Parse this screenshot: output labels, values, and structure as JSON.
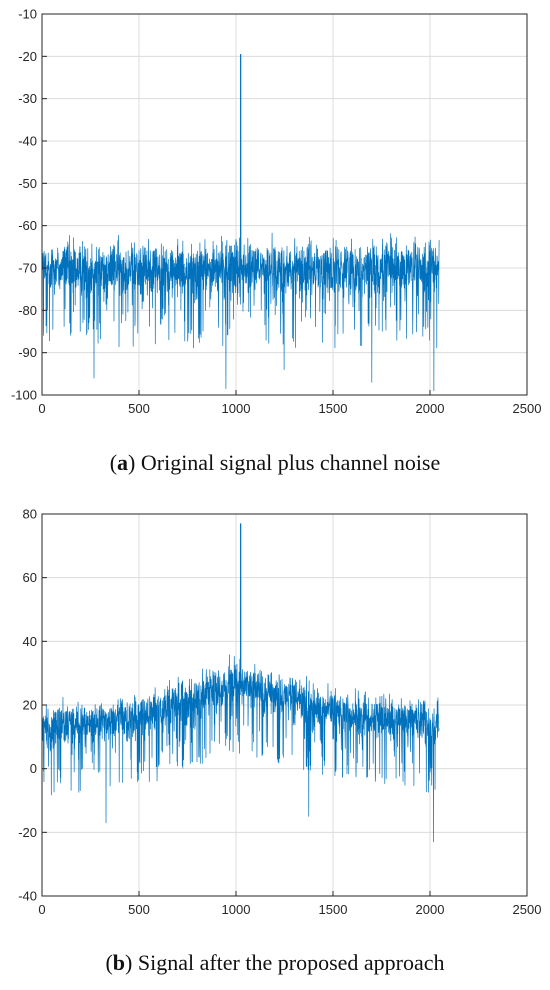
{
  "captions": {
    "a": {
      "letter": "a",
      "text": ") Original signal plus channel noise"
    },
    "b": {
      "letter": "b",
      "text": ") Signal after the proposed approach"
    }
  },
  "chart_data": [
    {
      "id": "a",
      "type": "line",
      "xlim": [
        0,
        2500
      ],
      "ylim": [
        -100,
        -10
      ],
      "xticks": [
        0,
        500,
        1000,
        1500,
        2000,
        2500
      ],
      "yticks": [
        -100,
        -90,
        -80,
        -70,
        -60,
        -50,
        -40,
        -30,
        -20,
        -10
      ],
      "grid": true,
      "color": "#0072BD",
      "n_points": 2048,
      "noise_floor": {
        "mean": -70,
        "upper": -60,
        "lower": -90
      },
      "peaks": [
        {
          "x": 1024,
          "y": -19.5
        }
      ],
      "dips": [
        {
          "x": 268,
          "y": -96
        },
        {
          "x": 948,
          "y": -98.5
        },
        {
          "x": 1248,
          "y": -94
        },
        {
          "x": 1700,
          "y": -97
        },
        {
          "x": 2020,
          "y": -99
        }
      ]
    },
    {
      "id": "b",
      "type": "line",
      "xlim": [
        0,
        2500
      ],
      "ylim": [
        -40,
        80
      ],
      "xticks": [
        0,
        500,
        1000,
        1500,
        2000,
        2500
      ],
      "yticks": [
        -40,
        -20,
        0,
        20,
        40,
        60,
        80
      ],
      "grid": true,
      "color": "#0072BD",
      "n_points": 2048,
      "envelope": [
        [
          0,
          13
        ],
        [
          500,
          16
        ],
        [
          1000,
          27
        ],
        [
          1500,
          18
        ],
        [
          2048,
          14
        ]
      ],
      "peaks": [
        {
          "x": 1024,
          "y": 77
        }
      ],
      "dips": [
        {
          "x": 330,
          "y": -17
        },
        {
          "x": 1375,
          "y": -15
        },
        {
          "x": 2018,
          "y": -23
        }
      ]
    }
  ]
}
